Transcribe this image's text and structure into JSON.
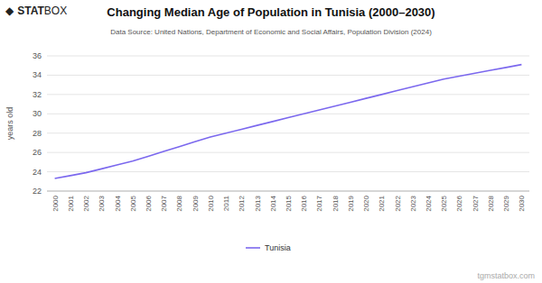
{
  "chart_data": {
    "type": "line",
    "title": "Changing Median Age of Population in Tunisia (2000–2030)",
    "subtitle": "Data Source: United Nations, Department of Economic and Social Affairs, Population Division (2024)",
    "y_label": "years old",
    "watermark": "tgmstatbox.com",
    "logo": [
      "◆",
      "STAT",
      "BOX"
    ],
    "x": [
      2000,
      2001,
      2002,
      2003,
      2004,
      2005,
      2006,
      2007,
      2008,
      2009,
      2010,
      2011,
      2012,
      2013,
      2014,
      2015,
      2016,
      2017,
      2018,
      2019,
      2020,
      2021,
      2022,
      2023,
      2024,
      2025,
      2026,
      2027,
      2028,
      2029,
      2030
    ],
    "xlim": [
      1999.5,
      2030.5
    ],
    "xticks": [
      2000,
      2001,
      2002,
      2003,
      2004,
      2005,
      2006,
      2007,
      2008,
      2009,
      2010,
      2011,
      2012,
      2013,
      2014,
      2015,
      2016,
      2017,
      2018,
      2019,
      2020,
      2021,
      2022,
      2023,
      2024,
      2025,
      2026,
      2027,
      2028,
      2029,
      2030
    ],
    "series": [
      {
        "name": "Tunisia",
        "color": "#7B68EE",
        "values": [
          23.3,
          23.6,
          23.9,
          24.3,
          24.7,
          25.1,
          25.6,
          26.1,
          26.6,
          27.1,
          27.6,
          28.0,
          28.4,
          28.8,
          29.2,
          29.6,
          30.0,
          30.4,
          30.8,
          31.2,
          31.6,
          32.0,
          32.4,
          32.8,
          33.2,
          33.6,
          33.9,
          34.2,
          34.5,
          34.8,
          35.1
        ]
      }
    ],
    "ylim": [
      22,
      36
    ],
    "yticks": [
      22,
      24,
      26,
      28,
      30,
      32,
      34,
      36
    ],
    "grid": true,
    "legend": "bottom"
  }
}
